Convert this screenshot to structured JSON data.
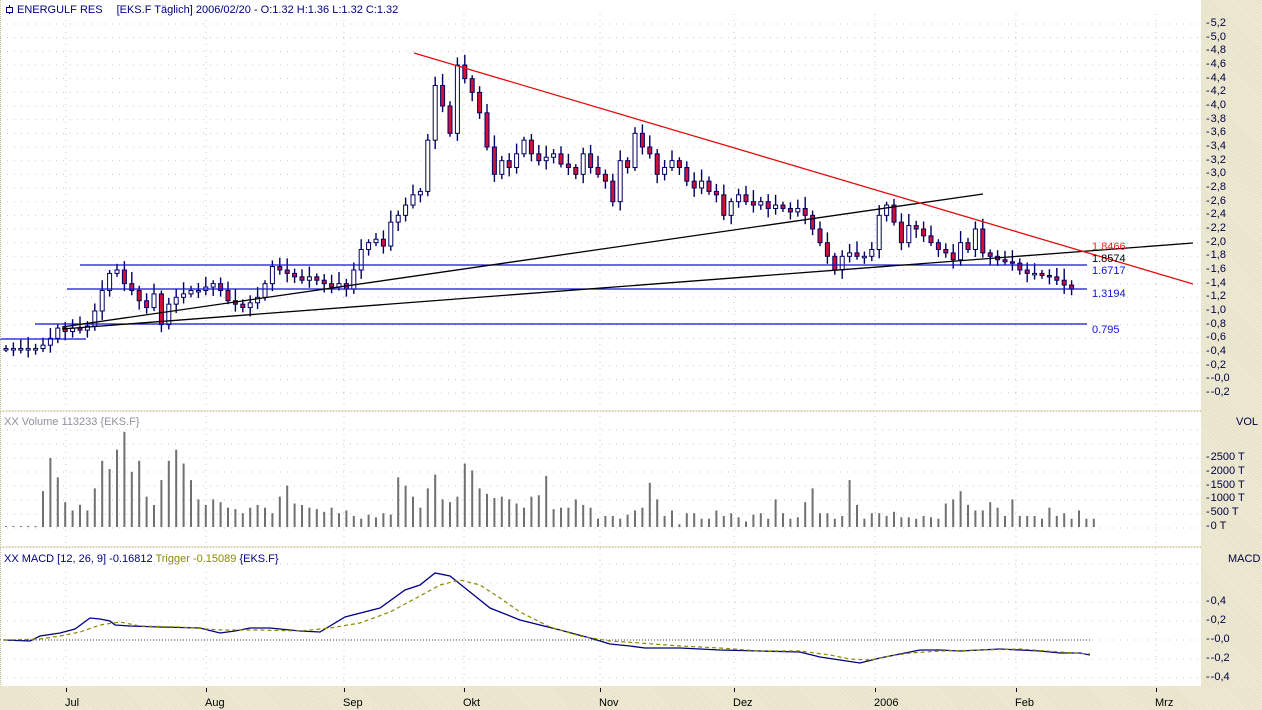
{
  "header": {
    "name": "ENERGULF RES",
    "ticker_info": "[EKS.F  Täglich] 2006/02/20 - O:1.32 H:1.36 L:1.32 C:1.32"
  },
  "price_axis": {
    "ticks": [
      "5,2",
      "5,0",
      "4,8",
      "4,6",
      "4,4",
      "4,2",
      "4,0",
      "3,8",
      "3,6",
      "3,4",
      "3,2",
      "3,0",
      "2,8",
      "2,6",
      "2,4",
      "2,2",
      "2,0",
      "1,8",
      "1,6",
      "1,4",
      "1,2",
      "1,0",
      "0,8",
      "0,6",
      "0,4",
      "0,2",
      "-0,0",
      "-0,2"
    ]
  },
  "levels": [
    {
      "label": "1.8466",
      "color": "#ff2020"
    },
    {
      "label": "1.8574",
      "color": "#000000"
    },
    {
      "label": "1.6717",
      "color": "#1010e0"
    },
    {
      "label": "1.3194",
      "color": "#1010e0"
    },
    {
      "label": "0.795",
      "color": "#1010e0"
    }
  ],
  "volume_panel": {
    "title": "XX Volume 113233 {EKS.F}",
    "unit": "VOL",
    "ticks": [
      "2500 T",
      "2000 T",
      "1500 T",
      "1000 T",
      "500 T",
      "0 T"
    ]
  },
  "macd_panel": {
    "prefix": "XX MACD [12, 26, 9] -0.16812",
    "trigger": "Trigger -0.15089",
    "suffix": "{EKS.F}",
    "unit": "MACD",
    "ticks": [
      "0,4",
      "0,2",
      "-0,0",
      "-0,2",
      "-0,4"
    ]
  },
  "x_axis": {
    "months": [
      "Jul",
      "Aug",
      "Sep",
      "Okt",
      "Nov",
      "Dez",
      "2006",
      "Feb",
      "Mrz"
    ]
  },
  "colors": {
    "candle_up_fill": "#ffffff",
    "candle_down_fill": "#d0103a",
    "candle_outline": "#000060",
    "resistance_line": "#e01010",
    "support_line": "#000000",
    "horizontal_levels": "#1010d0",
    "macd_line": "#000080",
    "trigger_line": "#8a8a00",
    "volume_bar": "#707070"
  },
  "chart_data": [
    {
      "type": "candlestick",
      "title": "ENERGULF RES [EKS.F Täglich]",
      "xlabel": "",
      "ylabel": "",
      "ylim": [
        -0.2,
        5.2
      ],
      "x_ticks": [
        "Jul",
        "Aug",
        "Sep",
        "Okt",
        "Nov",
        "Dez",
        "2006",
        "Feb",
        "Mrz"
      ],
      "grid": true,
      "last_bar": {
        "date": "2006/02/20",
        "open": 1.32,
        "high": 1.36,
        "low": 1.32,
        "close": 1.32
      },
      "close_approx_by_month": {
        "Jun_end": 0.45,
        "Jul_start": 0.75,
        "Jul_mid": 1.55,
        "Jul_end": 1.1,
        "Aug_mid": 1.45,
        "Aug_end": 1.3,
        "Sep_start": 1.9,
        "Sep_mid": 2.7,
        "Sep_end": 4.4,
        "Okt_start": 3.5,
        "Okt_mid": 3.3,
        "Okt_end": 2.9,
        "Nov_start": 3.6,
        "Nov_mid": 3.0,
        "Nov_end": 2.5,
        "Dez_start": 2.6,
        "Dez_mid": 2.5,
        "Dez_end": 1.7,
        "Jan_start": 2.6,
        "Jan_mid": 2.1,
        "Jan_end": 1.9,
        "Feb_mid": 1.5,
        "Feb_20": 1.32
      },
      "peak": {
        "month": "Sep_end",
        "high": 4.7
      },
      "trendlines": [
        {
          "name": "resistance",
          "color": "red",
          "from": {
            "x": "Sep_end",
            "y": 4.8
          },
          "to": {
            "x": "Mrz",
            "y": 1.4
          },
          "label": "1.8466"
        },
        {
          "name": "support_upper",
          "color": "black",
          "from": {
            "x": "Jul",
            "y": 0.75
          },
          "to": {
            "x": "Jan_end",
            "y": 2.7
          }
        },
        {
          "name": "support_lower",
          "color": "black",
          "from": {
            "x": "Jul",
            "y": 0.7
          },
          "to": {
            "x": "Mrz",
            "y": 2.0
          },
          "label": "1.8574"
        }
      ],
      "horizontal_levels": [
        1.6717,
        1.3194,
        0.795
      ]
    },
    {
      "type": "bar",
      "title": "Volume 113233 {EKS.F}",
      "ylabel": "VOL",
      "ylim": [
        0,
        2900
      ],
      "y_ticks": [
        "0 T",
        "500 T",
        "1000 T",
        "1500 T",
        "2000 T",
        "2500 T"
      ],
      "last_value": 113233,
      "peaks_approx": [
        {
          "x": "Jul_mid",
          "value": 3450
        },
        {
          "x": "Jul_end",
          "value": 2500
        },
        {
          "x": "Sep_end",
          "value": 2450
        },
        {
          "x": "Nov_start",
          "value": 2100
        },
        {
          "x": "Sep_start",
          "value": 2000
        }
      ]
    },
    {
      "type": "line",
      "title": "MACD [12, 26, 9]",
      "ylabel": "MACD",
      "ylim": [
        -0.45,
        0.75
      ],
      "y_ticks": [
        "0,4",
        "0,2",
        "-0,0",
        "-0,2",
        "-0,4"
      ],
      "series": [
        {
          "name": "MACD",
          "last": -0.16812,
          "points_approx": [
            [
              "Jun_end",
              0.0
            ],
            [
              "Jul_mid",
              0.08
            ],
            [
              "Jul_end",
              0.2
            ],
            [
              "Aug_mid",
              0.1
            ],
            [
              "Aug_end",
              0.05
            ],
            [
              "Sep_mid",
              0.25
            ],
            [
              "Sep_end",
              0.68
            ],
            [
              "Okt_mid",
              0.3
            ],
            [
              "Nov_start",
              0.0
            ],
            [
              "Nov_end",
              -0.1
            ],
            [
              "Dez_mid",
              -0.12
            ],
            [
              "Dez_end",
              -0.25
            ],
            [
              "Jan_mid",
              -0.05
            ],
            [
              "Feb_start",
              -0.08
            ],
            [
              "Feb_20",
              -0.17
            ]
          ]
        },
        {
          "name": "Trigger",
          "last": -0.15089,
          "points_approx": [
            [
              "Jun_end",
              0.0
            ],
            [
              "Jul_mid",
              0.05
            ],
            [
              "Jul_end",
              0.18
            ],
            [
              "Aug_mid",
              0.12
            ],
            [
              "Aug_end",
              0.08
            ],
            [
              "Sep_mid",
              0.18
            ],
            [
              "Sep_end",
              0.6
            ],
            [
              "Okt_mid",
              0.4
            ],
            [
              "Nov_start",
              0.05
            ],
            [
              "Nov_end",
              -0.08
            ],
            [
              "Dez_mid",
              -0.12
            ],
            [
              "Dez_end",
              -0.2
            ],
            [
              "Jan_mid",
              -0.1
            ],
            [
              "Feb_start",
              -0.1
            ],
            [
              "Feb_20",
              -0.15
            ]
          ]
        }
      ]
    }
  ]
}
